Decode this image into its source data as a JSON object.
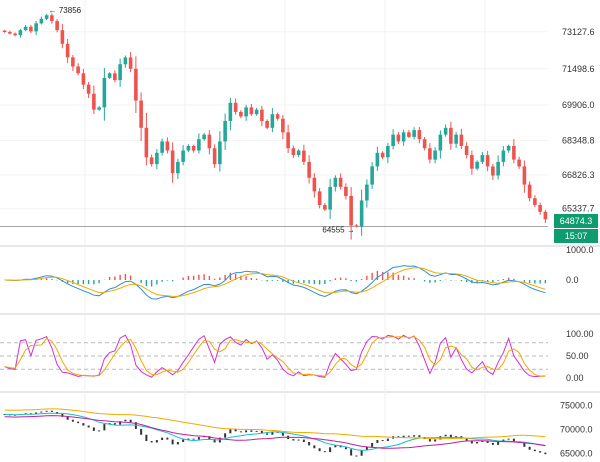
{
  "price_panel": {
    "high_annotation": "← 73856",
    "low_annotation": "64555 →",
    "y_ticks": [
      "73127.6",
      "71498.6",
      "69906.0",
      "68348.8",
      "66826.3",
      "65337.7"
    ],
    "y_tick_values": [
      73127.6,
      71498.6,
      69906.0,
      68348.8,
      66826.3,
      65337.7
    ],
    "last_price": "64874.3",
    "countdown": "15:07"
  },
  "macd_panel": {
    "y_ticks": [
      "1000.0",
      "0.0"
    ],
    "y_tick_values": [
      1000,
      0
    ]
  },
  "stoch_panel": {
    "y_ticks": [
      "100.00",
      "50.00",
      "0.00"
    ],
    "y_tick_values": [
      100,
      50,
      0
    ]
  },
  "ma_panel": {
    "y_ticks": [
      "75000.0",
      "70000.0",
      "65000.0"
    ],
    "y_tick_values": [
      75000,
      70000,
      65000
    ]
  },
  "colors": {
    "up": "#26a69a",
    "down": "#ef5350",
    "macd_line": "#2f8fd6",
    "signal_line": "#f2a900",
    "stoch_k": "#d62fd6",
    "stoch_d": "#f2a900",
    "ma_fast": "#17becf",
    "ma_slow": "#f2a900",
    "ma_mid": "#c21e9e",
    "last_price_bg": "#0e9b6e",
    "countdown_bg": "#0e9b6e"
  },
  "chart_data": {
    "type": "candlestick",
    "series": [
      {
        "name": "",
        "close": [
          73120,
          73050,
          72980,
          73200,
          73350,
          73150,
          73500,
          73700,
          73856,
          73600,
          73200,
          72600,
          72000,
          71600,
          71300,
          70800,
          70400,
          69700,
          69800,
          71100,
          71300,
          71000,
          71700,
          72000,
          71500,
          70100,
          68900,
          67600,
          67300,
          67800,
          68300,
          67900,
          66900,
          67400,
          67900,
          68100,
          67900,
          68400,
          68600,
          68000,
          67300,
          68300,
          69200,
          70000,
          69600,
          69400,
          69800,
          69500,
          69700,
          69200,
          68900,
          69500,
          69300,
          68700,
          68000,
          67700,
          67900,
          67400,
          66700,
          66100,
          65500,
          65300,
          66300,
          66700,
          66300,
          65900,
          64600,
          64555,
          65700,
          66400,
          67200,
          67800,
          67600,
          68100,
          68600,
          68300,
          68700,
          68500,
          68800,
          68400,
          68000,
          67500,
          67900,
          68600,
          68900,
          68200,
          68600,
          68100,
          67700,
          67100,
          67400,
          67700,
          67200,
          66800,
          67400,
          67900,
          68100,
          67500,
          67200,
          66400,
          65800,
          65500,
          65200,
          64874.3
        ]
      }
    ]
  }
}
